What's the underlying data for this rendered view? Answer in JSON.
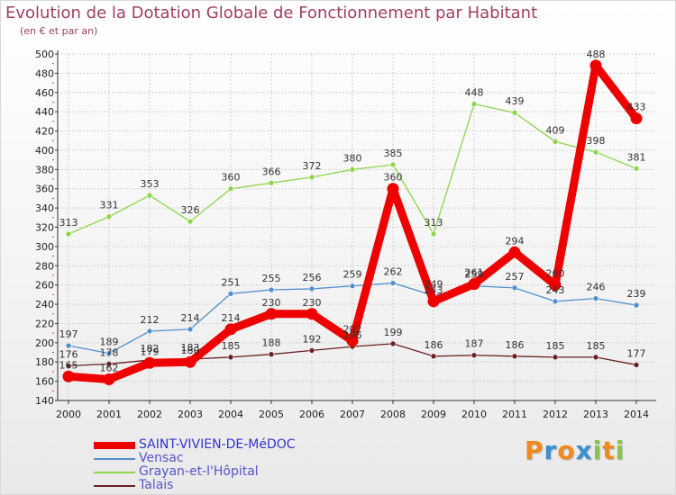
{
  "title": "Evolution de la Dotation Globale de Fonctionnement par Habitant",
  "subtitle": "(en € et par an)",
  "logo": {
    "letters": [
      "P",
      "r",
      "o",
      "x",
      "i",
      "t",
      "i"
    ],
    "colors": [
      "#f08a1c",
      "#3a8fd0",
      "#f08a1c",
      "#3a8fd0",
      "#8bc34a",
      "#f08a1c",
      "#8bc34a"
    ]
  },
  "chart_data": {
    "type": "line",
    "title": "Evolution de la Dotation Globale de Fonctionnement par Habitant",
    "ylabel": "(en € et par an)",
    "xlabel": "",
    "grid": true,
    "ylim": [
      140,
      500
    ],
    "ytick_step": 20,
    "x": [
      "2000",
      "2001",
      "2002",
      "2003",
      "2004",
      "2005",
      "2006",
      "2007",
      "2008",
      "2009",
      "2010",
      "2011",
      "2012",
      "2013",
      "2014"
    ],
    "series": [
      {
        "name": "SAINT-VIVIEN-DE-MéDOC",
        "color": "#ee0000",
        "emphasis": true,
        "values": [
          165,
          162,
          179,
          180,
          214,
          230,
          230,
          202,
          360,
          243,
          261,
          294,
          260,
          488,
          433
        ],
        "labels": [
          "165",
          "162",
          "179",
          "180",
          "214",
          "230",
          "230",
          "202",
          "360",
          "243",
          "261",
          "294",
          "260",
          "488",
          "433"
        ]
      },
      {
        "name": "Vensac",
        "color": "#4f90cc",
        "emphasis": false,
        "values": [
          197,
          189,
          212,
          214,
          251,
          255,
          256,
          259,
          262,
          249,
          259,
          257,
          243,
          246,
          239
        ],
        "labels": [
          "197",
          "189",
          "212",
          "214",
          "251",
          "255",
          "256",
          "259",
          "262",
          "249",
          "259",
          "257",
          "243",
          "246",
          "239"
        ]
      },
      {
        "name": "Grayan-et-l'Hôpital",
        "color": "#8dd64a",
        "emphasis": false,
        "values": [
          313,
          331,
          353,
          326,
          360,
          366,
          372,
          380,
          385,
          313,
          448,
          439,
          409,
          398,
          381
        ],
        "labels": [
          "313",
          "331",
          "353",
          "326",
          "360",
          "366",
          "372",
          "380",
          "385",
          "313",
          "448",
          "439",
          "409",
          "398",
          "381"
        ]
      },
      {
        "name": "Talais",
        "color": "#6b2020",
        "emphasis": false,
        "values": [
          176,
          178,
          182,
          183,
          185,
          188,
          192,
          196,
          199,
          186,
          187,
          186,
          185,
          185,
          177
        ],
        "labels": [
          "176",
          "178",
          "182",
          "183",
          "185",
          "188",
          "192",
          "196",
          "199",
          "186",
          "187",
          "186",
          "185",
          "185",
          "177"
        ]
      }
    ],
    "legend_position": "bottom-left"
  }
}
